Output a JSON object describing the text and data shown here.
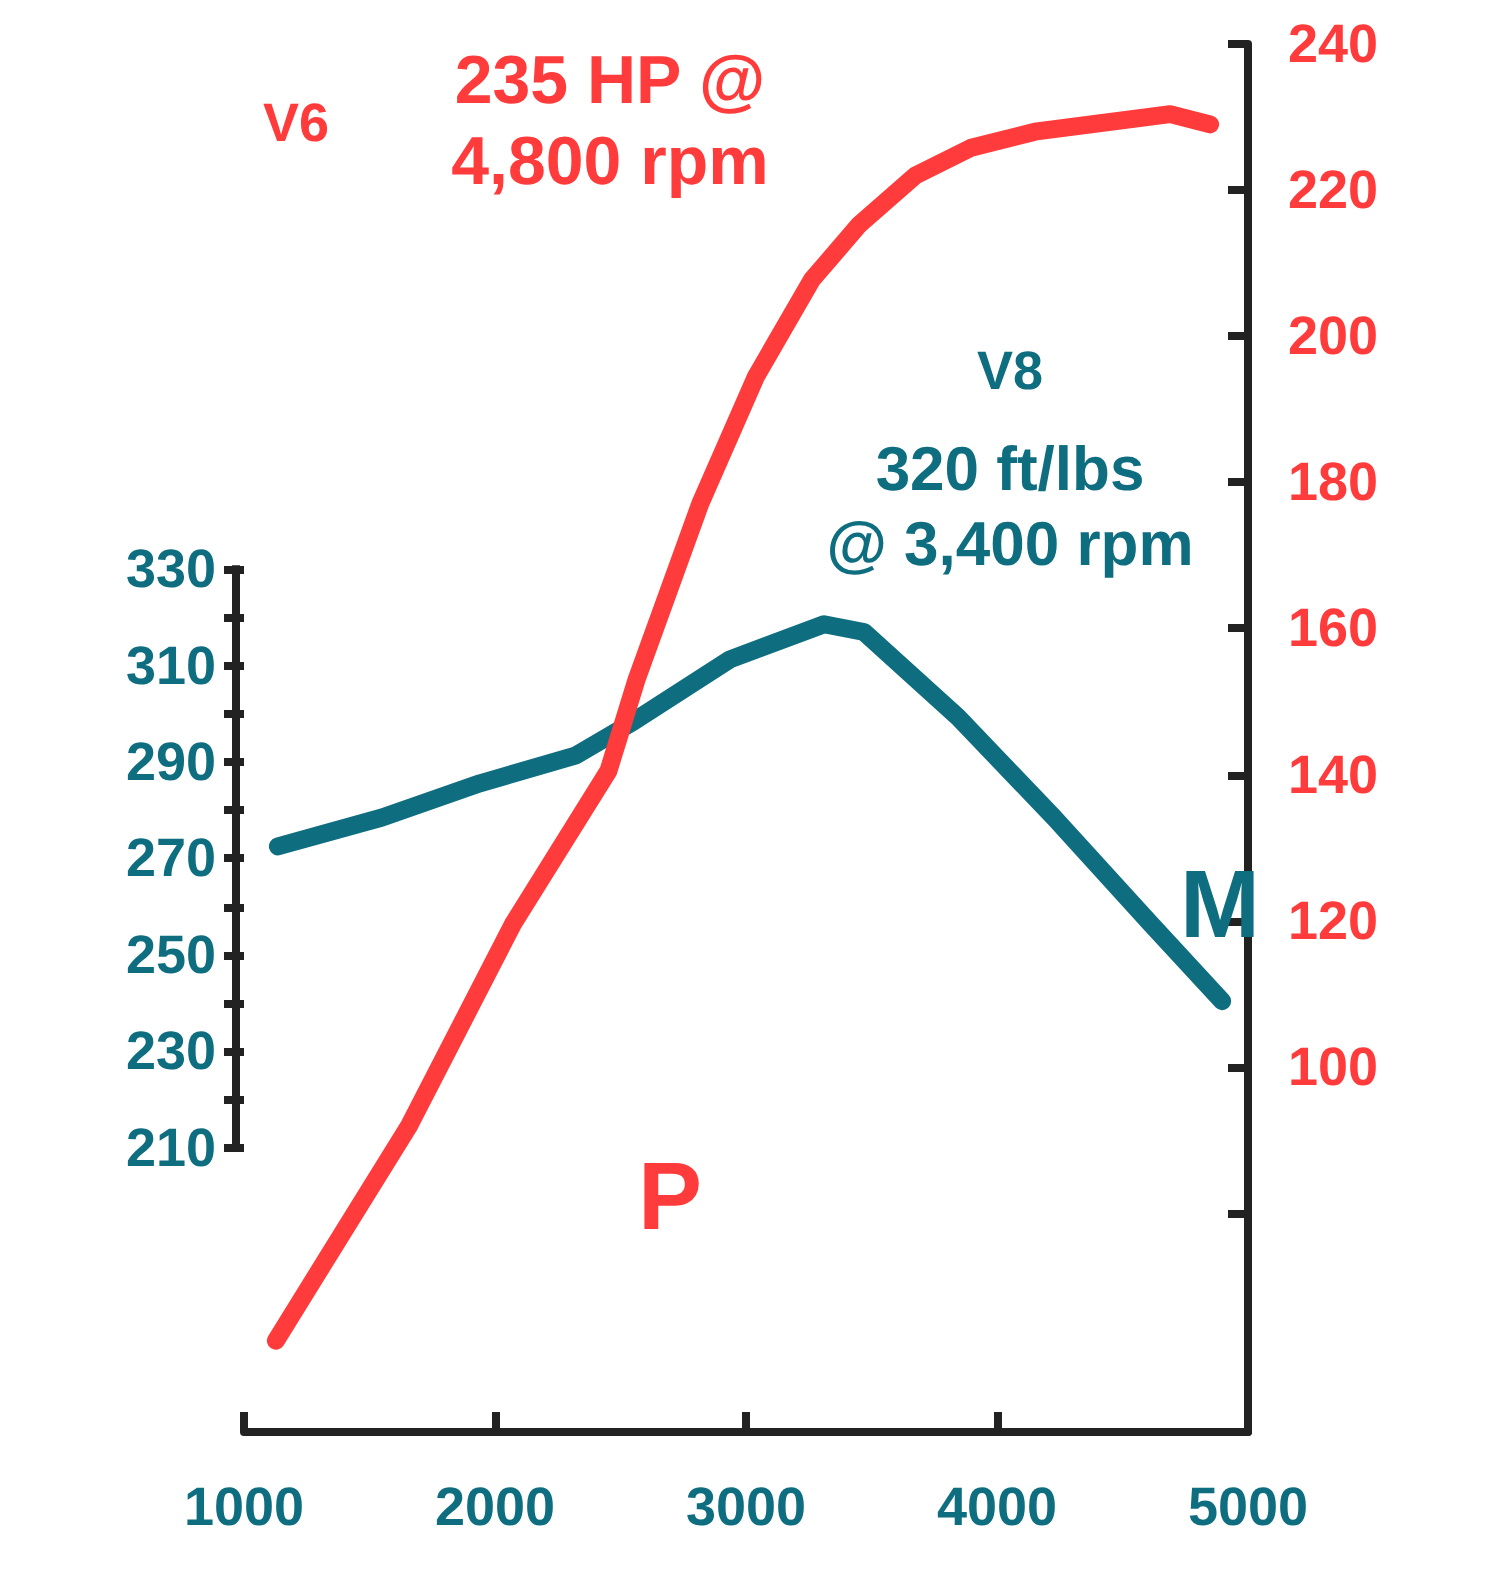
{
  "chart_data": {
    "type": "line",
    "xlim": [
      1000,
      5000
    ],
    "xticks": [
      1000,
      2000,
      3000,
      4000,
      5000
    ],
    "ylim": [
      151,
      439
    ],
    "yticks": [
      210,
      {
        "value": 220,
        "label": null
      },
      230,
      {
        "value": 240,
        "label": null
      },
      250,
      {
        "value": 260,
        "label": null
      },
      270,
      {
        "value": 280,
        "label": null
      },
      290,
      {
        "value": 300,
        "label": null
      },
      310,
      {
        "value": 320,
        "label": null
      },
      330
    ],
    "y2lim": [
      50,
      240
    ],
    "y2ticks": [
      {
        "value": 80,
        "label": null
      },
      100,
      120,
      140,
      160,
      180,
      200,
      220,
      240
    ],
    "grid": false,
    "line_style": "solid",
    "series": [
      {
        "name": "V6",
        "color": "#ff3b3b",
        "axis": "y2",
        "x": [
          1127,
          1659,
          2071,
          2452,
          2563,
          2817,
          3040,
          3262,
          3452,
          3675,
          3897,
          4151,
          4690,
          4849
        ],
        "values": [
          62.5,
          92,
          119.5,
          140.5,
          152.9,
          177,
          194.5,
          207.7,
          215.3,
          222,
          225.8,
          228,
          230.4,
          229
        ]
      },
      {
        "name": "V8",
        "color": "#0e6e80",
        "axis": "y",
        "x": [
          1135,
          1550,
          1940,
          2323,
          2554,
          2936,
          3311,
          3470,
          3845,
          4227,
          4610,
          4897
        ],
        "values": [
          272.5,
          278.5,
          285.6,
          291.4,
          298.5,
          311.3,
          318.6,
          317,
          299.3,
          278.5,
          256.6,
          240.4
        ]
      }
    ],
    "annotations": [
      "235 HP @ 4,800 rpm",
      "320 ft/lbs @ 3,400 rpm",
      "P",
      "M"
    ]
  }
}
